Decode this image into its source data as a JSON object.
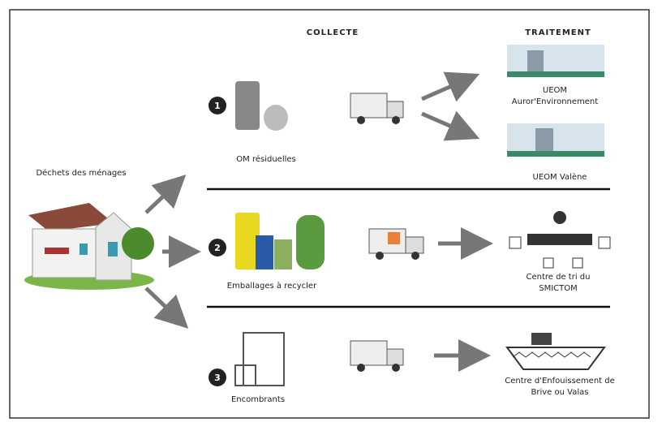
{
  "header": {
    "collecte": "COLLECTE",
    "traitement": "TRAITEMENT"
  },
  "source": {
    "label": "Déchets des ménages"
  },
  "streams": [
    {
      "number": "1",
      "label": "OM résiduelles",
      "destinations": [
        {
          "lines": [
            "UEOM",
            "Auror'Environnement"
          ]
        },
        {
          "lines": [
            "UEOM Valène"
          ]
        }
      ]
    },
    {
      "number": "2",
      "label": "Emballages à recycler",
      "destinations": [
        {
          "lines": [
            "Centre de tri du",
            "SMICTOM"
          ]
        }
      ]
    },
    {
      "number": "3",
      "label": "Encombrants",
      "destinations": [
        {
          "lines": [
            "Centre d'Enfouissement de",
            "Brive ou Valas"
          ]
        }
      ]
    }
  ]
}
